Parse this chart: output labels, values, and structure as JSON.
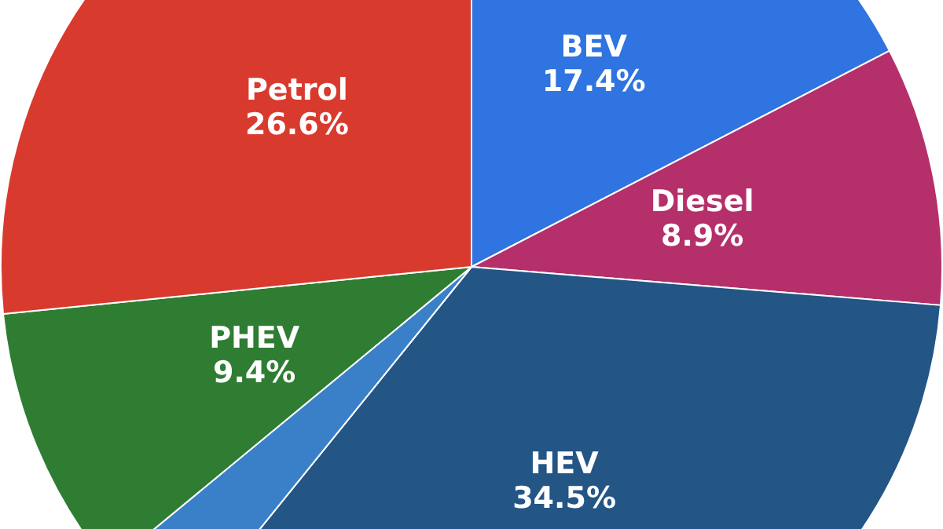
{
  "chart_data": {
    "type": "pie",
    "categories": [
      "BEV",
      "Diesel",
      "HEV",
      null,
      "PHEV",
      "Petrol"
    ],
    "values": [
      17.4,
      8.9,
      34.5,
      3.2,
      9.4,
      26.6
    ],
    "colors": [
      "#2f74e0",
      "#b52f6a",
      "#235585",
      "#3a80c8",
      "#2e7d32",
      "#d93a2e"
    ],
    "value_labels": [
      "17.4%",
      "8.9%",
      "34.5%",
      null,
      "9.4%",
      "26.6%"
    ],
    "legend": false
  }
}
